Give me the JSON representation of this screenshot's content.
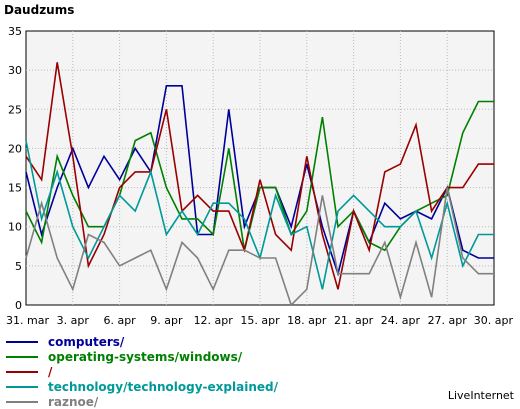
{
  "chart_data": {
    "type": "line",
    "title": "Daudzums",
    "xlabel": "",
    "ylabel": "",
    "ylim": [
      0,
      35
    ],
    "yticks": [
      0,
      5,
      10,
      15,
      20,
      25,
      30,
      35
    ],
    "grid": true,
    "legend_position": "bottom-left",
    "x": [
      "31. mar",
      "1. apr",
      "2. apr",
      "3. apr",
      "4. apr",
      "5. apr",
      "6. apr",
      "7. apr",
      "8. apr",
      "9. apr",
      "10. apr",
      "11. apr",
      "12. apr",
      "13. apr",
      "14. apr",
      "15. apr",
      "16. apr",
      "17. apr",
      "18. apr",
      "19. apr",
      "20. apr",
      "21. apr",
      "22. apr",
      "23. apr",
      "24. apr",
      "25. apr",
      "26. apr",
      "27. apr",
      "28. apr",
      "29. apr",
      "30. apr"
    ],
    "xticks": [
      "31. mar",
      "3. apr",
      "6. apr",
      "9. apr",
      "12. apr",
      "15. apr",
      "18. apr",
      "21. apr",
      "24. apr",
      "27. apr",
      "30. apr"
    ],
    "series": [
      {
        "name": "computers/",
        "color": "#000099",
        "values": [
          17,
          9,
          15,
          20,
          15,
          19,
          16,
          20,
          17,
          28,
          28,
          9,
          9,
          25,
          10,
          15,
          15,
          10,
          18,
          10,
          4,
          12,
          8,
          13,
          11,
          12,
          11,
          15,
          7,
          6,
          6
        ]
      },
      {
        "name": "operating-systems/windows/",
        "color": "#008000",
        "values": [
          12,
          8,
          19,
          14,
          10,
          10,
          14,
          21,
          22,
          15,
          11,
          11,
          9,
          20,
          7,
          15,
          15,
          9,
          12,
          24,
          10,
          12,
          8,
          7,
          10,
          12,
          13,
          14,
          22,
          26,
          26
        ]
      },
      {
        "name": "/",
        "color": "#990000",
        "values": [
          19,
          16,
          31,
          19,
          5,
          9,
          15,
          17,
          17,
          25,
          12,
          14,
          12,
          12,
          7,
          16,
          9,
          7,
          19,
          9,
          2,
          12,
          7,
          17,
          18,
          23,
          12,
          15,
          15,
          18,
          18
        ]
      },
      {
        "name": "technology/technology-explained/",
        "color": "#009999",
        "values": [
          21,
          11,
          17,
          10,
          6,
          10,
          14,
          12,
          17,
          9,
          12,
          9,
          13,
          13,
          11,
          6,
          14,
          9,
          10,
          2,
          12,
          14,
          12,
          10,
          10,
          12,
          6,
          13,
          5,
          9,
          9
        ]
      },
      {
        "name": "raznoe/",
        "color": "#808080",
        "values": [
          6,
          13,
          6,
          2,
          9,
          8,
          5,
          6,
          7,
          2,
          8,
          6,
          2,
          7,
          7,
          6,
          6,
          0,
          2,
          14,
          4,
          4,
          4,
          8,
          1,
          8,
          1,
          15,
          6,
          4,
          4
        ]
      }
    ]
  },
  "credit": "LiveInternet"
}
